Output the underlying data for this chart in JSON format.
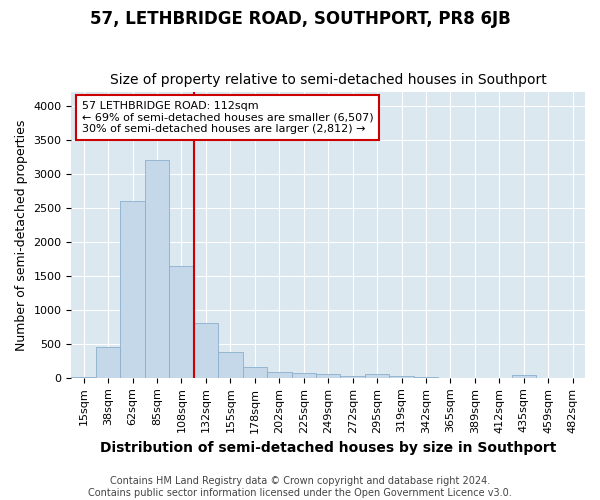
{
  "title": "57, LETHBRIDGE ROAD, SOUTHPORT, PR8 6JB",
  "subtitle": "Size of property relative to semi-detached houses in Southport",
  "xlabel": "Distribution of semi-detached houses by size in Southport",
  "ylabel": "Number of semi-detached properties",
  "footer_line1": "Contains HM Land Registry data © Crown copyright and database right 2024.",
  "footer_line2": "Contains public sector information licensed under the Open Government Licence v3.0.",
  "annotation_line1": "57 LETHBRIDGE ROAD: 112sqm",
  "annotation_line2": "← 69% of semi-detached houses are smaller (6,507)",
  "annotation_line3": "30% of semi-detached houses are larger (2,812) →",
  "bar_labels": [
    "15sqm",
    "38sqm",
    "62sqm",
    "85sqm",
    "108sqm",
    "132sqm",
    "155sqm",
    "178sqm",
    "202sqm",
    "225sqm",
    "249sqm",
    "272sqm",
    "295sqm",
    "319sqm",
    "342sqm",
    "365sqm",
    "389sqm",
    "412sqm",
    "435sqm",
    "459sqm",
    "482sqm"
  ],
  "bar_values": [
    10,
    460,
    2600,
    3200,
    1650,
    800,
    380,
    155,
    80,
    65,
    50,
    20,
    55,
    20,
    5,
    2,
    0,
    0,
    40,
    0,
    0
  ],
  "bar_color": "#c5d8ea",
  "bar_edge_color": "#8ab0cc",
  "ref_line_color": "#cc0000",
  "ref_line_x": 4.5,
  "ylim": [
    0,
    4200
  ],
  "yticks": [
    0,
    500,
    1000,
    1500,
    2000,
    2500,
    3000,
    3500,
    4000
  ],
  "plot_bg_color": "#dce8f0",
  "annotation_box_edge_color": "#cc0000",
  "title_fontsize": 12,
  "subtitle_fontsize": 10,
  "axis_label_fontsize": 9,
  "tick_fontsize": 8,
  "footer_fontsize": 7
}
